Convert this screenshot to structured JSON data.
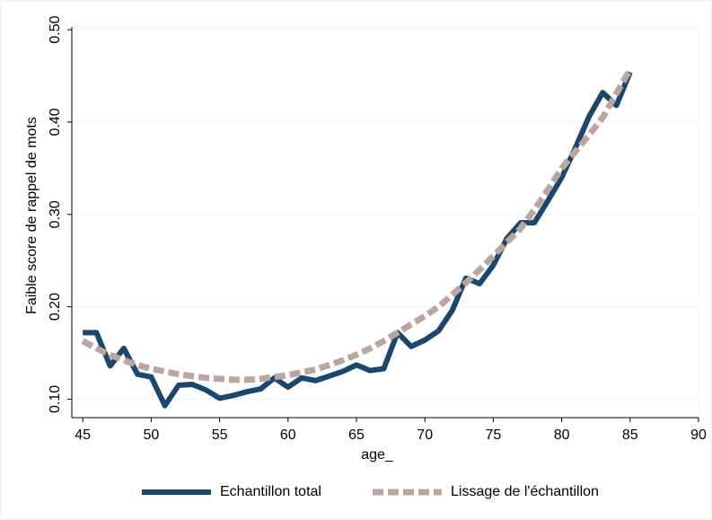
{
  "chart_data": {
    "type": "line",
    "x": [
      45,
      46,
      47,
      48,
      49,
      50,
      51,
      52,
      53,
      54,
      55,
      56,
      57,
      58,
      59,
      60,
      61,
      62,
      63,
      64,
      65,
      66,
      67,
      68,
      69,
      70,
      71,
      72,
      73,
      74,
      75,
      76,
      77,
      78,
      79,
      80,
      81,
      82,
      83,
      84,
      85
    ],
    "series": [
      {
        "name": "Echantillon total",
        "color": "#1a476f",
        "dash": false,
        "values": [
          0.172,
          0.172,
          0.136,
          0.155,
          0.127,
          0.124,
          0.093,
          0.115,
          0.116,
          0.11,
          0.101,
          0.104,
          0.108,
          0.111,
          0.123,
          0.113,
          0.123,
          0.12,
          0.125,
          0.13,
          0.137,
          0.131,
          0.133,
          0.172,
          0.157,
          0.164,
          0.174,
          0.196,
          0.231,
          0.225,
          0.245,
          0.274,
          0.291,
          0.291,
          0.315,
          0.34,
          0.372,
          0.406,
          0.432,
          0.418,
          0.454
        ]
      },
      {
        "name": "Lissage de l'échantillon",
        "color": "#bca59f",
        "dash": true,
        "values": [
          0.163,
          0.155,
          0.148,
          0.142,
          0.137,
          0.133,
          0.13,
          0.127,
          0.125,
          0.123,
          0.122,
          0.121,
          0.121,
          0.122,
          0.124,
          0.126,
          0.129,
          0.132,
          0.137,
          0.142,
          0.148,
          0.155,
          0.163,
          0.172,
          0.181,
          0.19,
          0.2,
          0.213,
          0.226,
          0.24,
          0.255,
          0.27,
          0.285,
          0.305,
          0.327,
          0.35,
          0.368,
          0.386,
          0.405,
          0.431,
          0.457
        ]
      }
    ],
    "xlabel": "age_",
    "ylabel": "Faible score de rappel de mots",
    "xlim": [
      44.2,
      90
    ],
    "xticks": [
      45,
      50,
      55,
      60,
      65,
      70,
      75,
      80,
      85,
      90
    ],
    "ylim": [
      0.08,
      0.503
    ],
    "yticks": [
      {
        "value": 0.1,
        "label": "0.10"
      },
      {
        "value": 0.2,
        "label": "0.20"
      },
      {
        "value": 0.3,
        "label": "0.30"
      },
      {
        "value": 0.4,
        "label": "0.40"
      },
      {
        "value": 0.5,
        "label": "0.50"
      }
    ],
    "grid": true,
    "legend": "bottom"
  }
}
